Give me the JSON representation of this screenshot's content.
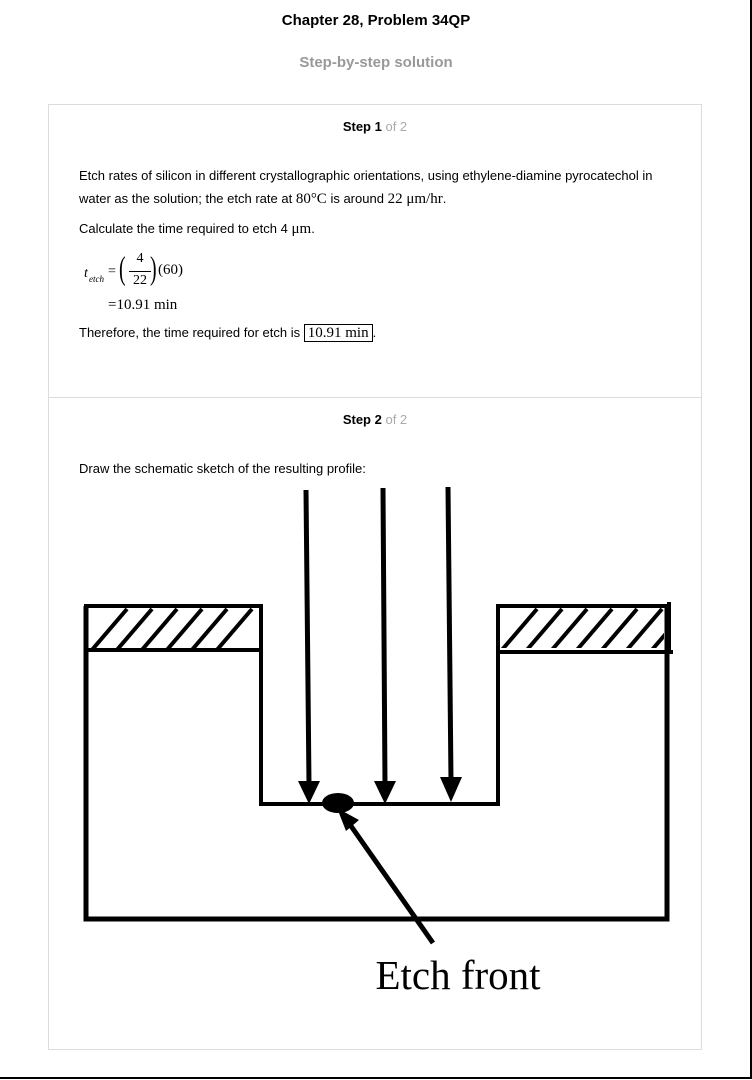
{
  "header": {
    "title": "Chapter 28, Problem 34QP",
    "subtitle": "Step-by-step solution"
  },
  "steps": [
    {
      "label": "Step 1",
      "total": "of 2",
      "p1_a": "Etch rates of silicon in different crystallographic orientations, using ethylene-diamine pyrocatechol in water as the solution; the etch rate at",
      "temp": "80°C",
      "p1_b": "is around",
      "rate": "22 μm/hr",
      "p1_c": ".",
      "p2_a": "Calculate the time required to etch 4",
      "p2_unit": "μm",
      "p2_b": ".",
      "eq_lhs": "t",
      "eq_sub": "etch",
      "eq_num": "4",
      "eq_den": "22",
      "eq_mult": "(60)",
      "eq_result": "=10.91 min",
      "p3_a": "Therefore, the time required for etch is",
      "answer": "10.91 min",
      "p3_b": "."
    },
    {
      "label": "Step 2",
      "total": "of 2",
      "p1": "Draw the schematic sketch of the resulting profile:",
      "figure_label": "Etch front"
    }
  ]
}
